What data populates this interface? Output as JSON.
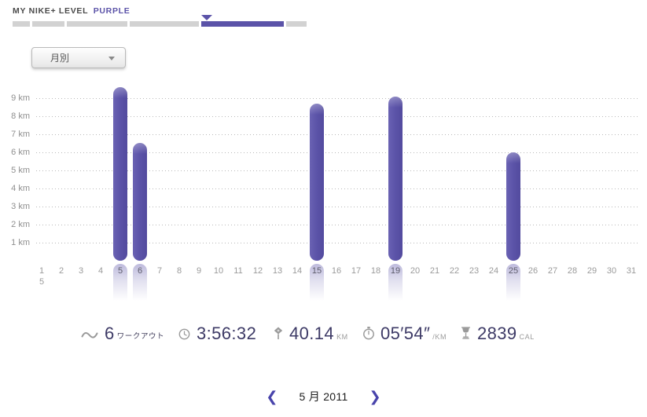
{
  "header": {
    "title": "MY NIKE+ LEVEL",
    "level": "PURPLE",
    "level_color": "#5b53a8",
    "progress_segments": [
      {
        "w": 22,
        "active": false
      },
      {
        "w": 41,
        "active": false
      },
      {
        "w": 77,
        "active": false
      },
      {
        "w": 88,
        "active": false
      },
      {
        "w": 105,
        "active": true
      },
      {
        "w": 26,
        "active": false
      }
    ]
  },
  "filter_dropdown": {
    "value": "月別"
  },
  "chart_data": {
    "type": "bar",
    "title": "",
    "ylabel": "",
    "xlabel": "",
    "ylim": [
      0,
      9.7
    ],
    "grid": "dotted-horizontal",
    "bar_color": "#5b53a8",
    "y_ticks": [
      "9 km",
      "8 km",
      "7 km",
      "6 km",
      "5 km",
      "4 km",
      "3 km",
      "2 km",
      "1 km"
    ],
    "x_labels": [
      "1",
      "2",
      "3",
      "4",
      "5",
      "6",
      "7",
      "8",
      "9",
      "10",
      "11",
      "12",
      "13",
      "14",
      "15",
      "16",
      "17",
      "18",
      "19",
      "20",
      "21",
      "22",
      "23",
      "24",
      "25",
      "26",
      "27",
      "28",
      "29",
      "30",
      "31"
    ],
    "day1_sublabel": "5",
    "bars": [
      {
        "day": 5,
        "km": 9.6
      },
      {
        "day": 6,
        "km": 6.5
      },
      {
        "day": 15,
        "km": 8.7
      },
      {
        "day": 19,
        "km": 9.1
      },
      {
        "day": 25,
        "km": 6.0
      }
    ]
  },
  "stats": {
    "workouts": {
      "value": "6",
      "unit": "ワークアウト"
    },
    "duration": {
      "value": "3:56:32",
      "unit": ""
    },
    "distance": {
      "value": "40.14",
      "unit": "KM"
    },
    "pace": {
      "value": "05′54″",
      "unit": "/KM"
    },
    "calories": {
      "value": "2839",
      "unit": "CAL"
    }
  },
  "month_nav": {
    "prev_glyph": "❮",
    "label": "5 月 2011",
    "next_glyph": "❯"
  }
}
